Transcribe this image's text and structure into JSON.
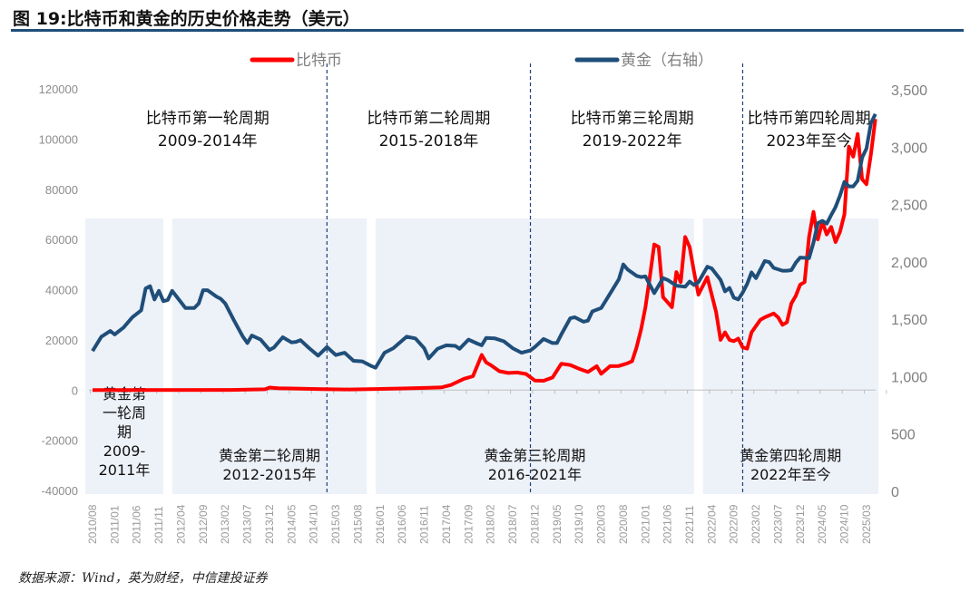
{
  "title": "图 19:比特币和黄金的历史价格走势（美元）",
  "source": "数据来源：Wind，英为财经，中信建投证券",
  "chart_data": {
    "type": "line",
    "title": "图 19:比特币和黄金的历史价格走势（美元）",
    "x_ticks": [
      "2010/08",
      "2011/01",
      "2011/06",
      "2011/11",
      "2012/04",
      "2012/09",
      "2013/02",
      "2013/07",
      "2013/12",
      "2014/05",
      "2014/10",
      "2015/03",
      "2015/08",
      "2016/01",
      "2016/06",
      "2016/11",
      "2017/04",
      "2017/09",
      "2018/02",
      "2018/07",
      "2018/12",
      "2019/05",
      "2019/10",
      "2020/03",
      "2020/08",
      "2021/01",
      "2021/06",
      "2021/11",
      "2022/04",
      "2022/09",
      "2023/02",
      "2023/07",
      "2023/12",
      "2024/05",
      "2024/10",
      "2025/03"
    ],
    "y_left": {
      "ticks": [
        "120000",
        "100000",
        "80000",
        "60000",
        "40000",
        "20000",
        "0",
        "-20000",
        "-40000"
      ],
      "range": [
        -40000,
        120000
      ]
    },
    "y_right": {
      "ticks": [
        "3,500",
        "3,000",
        "2,500",
        "2,000",
        "1,500",
        "1,000",
        "500",
        "0"
      ],
      "range": [
        0,
        3500
      ]
    },
    "grid": false,
    "legend_position": "top",
    "series": [
      {
        "name": "比特币",
        "axis": "left",
        "color": "#ff0000",
        "points": [
          [
            "2010/08",
            0
          ],
          [
            "2013/03",
            50
          ],
          [
            "2013/11",
            300
          ],
          [
            "2013/12",
            1000
          ],
          [
            "2014/02",
            700
          ],
          [
            "2014/06",
            600
          ],
          [
            "2014/12",
            330
          ],
          [
            "2015/06",
            240
          ],
          [
            "2015/12",
            420
          ],
          [
            "2016/06",
            650
          ],
          [
            "2016/12",
            900
          ],
          [
            "2017/03",
            1100
          ],
          [
            "2017/05",
            2000
          ],
          [
            "2017/08",
            4500
          ],
          [
            "2017/10",
            5500
          ],
          [
            "2017/12",
            14000
          ],
          [
            "2018/01",
            11000
          ],
          [
            "2018/02",
            10000
          ],
          [
            "2018/04",
            7500
          ],
          [
            "2018/06",
            6800
          ],
          [
            "2018/08",
            7000
          ],
          [
            "2018/10",
            6400
          ],
          [
            "2018/12",
            3800
          ],
          [
            "2019/02",
            3700
          ],
          [
            "2019/04",
            5000
          ],
          [
            "2019/06",
            10500
          ],
          [
            "2019/08",
            10000
          ],
          [
            "2019/10",
            8500
          ],
          [
            "2019/12",
            7200
          ],
          [
            "2020/02",
            9500
          ],
          [
            "2020/03",
            6500
          ],
          [
            "2020/05",
            9500
          ],
          [
            "2020/07",
            9600
          ],
          [
            "2020/09",
            10700
          ],
          [
            "2020/10",
            11500
          ],
          [
            "2020/11",
            17000
          ],
          [
            "2020/12",
            24000
          ],
          [
            "2021/01",
            33000
          ],
          [
            "2021/02",
            45000
          ],
          [
            "2021/03",
            58000
          ],
          [
            "2021/04",
            57000
          ],
          [
            "2021/05",
            37000
          ],
          [
            "2021/06",
            35000
          ],
          [
            "2021/07",
            33000
          ],
          [
            "2021/08",
            47000
          ],
          [
            "2021/09",
            43000
          ],
          [
            "2021/10",
            61000
          ],
          [
            "2021/11",
            57000
          ],
          [
            "2021/12",
            47000
          ],
          [
            "2022/01",
            38000
          ],
          [
            "2022/03",
            45000
          ],
          [
            "2022/05",
            31000
          ],
          [
            "2022/06",
            20000
          ],
          [
            "2022/07",
            23000
          ],
          [
            "2022/08",
            20000
          ],
          [
            "2022/09",
            19500
          ],
          [
            "2022/10",
            20500
          ],
          [
            "2022/11",
            17000
          ],
          [
            "2022/12",
            16500
          ],
          [
            "2023/01",
            23000
          ],
          [
            "2023/03",
            28000
          ],
          [
            "2023/04",
            29000
          ],
          [
            "2023/06",
            30500
          ],
          [
            "2023/07",
            29000
          ],
          [
            "2023/08",
            26000
          ],
          [
            "2023/09",
            27000
          ],
          [
            "2023/10",
            34500
          ],
          [
            "2023/11",
            37500
          ],
          [
            "2023/12",
            42000
          ],
          [
            "2024/01",
            43000
          ],
          [
            "2024/02",
            61000
          ],
          [
            "2024/03",
            71000
          ],
          [
            "2024/04",
            60000
          ],
          [
            "2024/05",
            67000
          ],
          [
            "2024/06",
            62000
          ],
          [
            "2024/07",
            65000
          ],
          [
            "2024/08",
            59000
          ],
          [
            "2024/09",
            63000
          ],
          [
            "2024/10",
            70000
          ],
          [
            "2024/11",
            97000
          ],
          [
            "2024/12",
            93000
          ],
          [
            "2025/01",
            102000
          ],
          [
            "2025/02",
            84000
          ],
          [
            "2025/03",
            82000
          ],
          [
            "2025/04",
            94000
          ],
          [
            "2025/05",
            108000
          ]
        ]
      },
      {
        "name": "黄金（右轴）",
        "axis": "right",
        "color": "#1f4e79",
        "points": [
          [
            "2010/08",
            1215
          ],
          [
            "2010/10",
            1340
          ],
          [
            "2010/12",
            1390
          ],
          [
            "2011/01",
            1360
          ],
          [
            "2011/03",
            1420
          ],
          [
            "2011/05",
            1510
          ],
          [
            "2011/07",
            1570
          ],
          [
            "2011/08",
            1760
          ],
          [
            "2011/09",
            1780
          ],
          [
            "2011/10",
            1665
          ],
          [
            "2011/11",
            1740
          ],
          [
            "2011/12",
            1650
          ],
          [
            "2012/01",
            1660
          ],
          [
            "2012/02",
            1740
          ],
          [
            "2012/03",
            1690
          ],
          [
            "2012/05",
            1590
          ],
          [
            "2012/07",
            1590
          ],
          [
            "2012/08",
            1630
          ],
          [
            "2012/09",
            1745
          ],
          [
            "2012/10",
            1745
          ],
          [
            "2012/12",
            1690
          ],
          [
            "2013/01",
            1670
          ],
          [
            "2013/02",
            1630
          ],
          [
            "2013/04",
            1480
          ],
          [
            "2013/06",
            1340
          ],
          [
            "2013/07",
            1285
          ],
          [
            "2013/08",
            1350
          ],
          [
            "2013/10",
            1315
          ],
          [
            "2013/12",
            1225
          ],
          [
            "2014/01",
            1245
          ],
          [
            "2014/03",
            1335
          ],
          [
            "2014/05",
            1290
          ],
          [
            "2014/06",
            1295
          ],
          [
            "2014/07",
            1310
          ],
          [
            "2014/09",
            1240
          ],
          [
            "2014/11",
            1175
          ],
          [
            "2015/01",
            1250
          ],
          [
            "2015/03",
            1180
          ],
          [
            "2015/05",
            1200
          ],
          [
            "2015/07",
            1130
          ],
          [
            "2015/09",
            1125
          ],
          [
            "2015/11",
            1085
          ],
          [
            "2015/12",
            1070
          ],
          [
            "2016/02",
            1200
          ],
          [
            "2016/04",
            1240
          ],
          [
            "2016/07",
            1340
          ],
          [
            "2016/09",
            1325
          ],
          [
            "2016/11",
            1240
          ],
          [
            "2016/12",
            1150
          ],
          [
            "2017/02",
            1235
          ],
          [
            "2017/04",
            1265
          ],
          [
            "2017/06",
            1260
          ],
          [
            "2017/07",
            1235
          ],
          [
            "2017/09",
            1315
          ],
          [
            "2017/11",
            1280
          ],
          [
            "2017/12",
            1265
          ],
          [
            "2018/01",
            1330
          ],
          [
            "2018/03",
            1325
          ],
          [
            "2018/05",
            1300
          ],
          [
            "2018/07",
            1240
          ],
          [
            "2018/09",
            1200
          ],
          [
            "2018/11",
            1220
          ],
          [
            "2018/12",
            1250
          ],
          [
            "2019/02",
            1320
          ],
          [
            "2019/04",
            1285
          ],
          [
            "2019/05",
            1285
          ],
          [
            "2019/06",
            1360
          ],
          [
            "2019/08",
            1500
          ],
          [
            "2019/09",
            1510
          ],
          [
            "2019/11",
            1470
          ],
          [
            "2019/12",
            1480
          ],
          [
            "2020/01",
            1560
          ],
          [
            "2020/03",
            1590
          ],
          [
            "2020/05",
            1715
          ],
          [
            "2020/07",
            1840
          ],
          [
            "2020/08",
            1970
          ],
          [
            "2020/09",
            1925
          ],
          [
            "2020/11",
            1870
          ],
          [
            "2020/12",
            1860
          ],
          [
            "2021/01",
            1865
          ],
          [
            "2021/03",
            1720
          ],
          [
            "2021/05",
            1850
          ],
          [
            "2021/06",
            1835
          ],
          [
            "2021/08",
            1785
          ],
          [
            "2021/10",
            1775
          ],
          [
            "2021/11",
            1820
          ],
          [
            "2021/12",
            1790
          ],
          [
            "2022/01",
            1815
          ],
          [
            "2022/03",
            1950
          ],
          [
            "2022/04",
            1935
          ],
          [
            "2022/06",
            1835
          ],
          [
            "2022/07",
            1735
          ],
          [
            "2022/08",
            1765
          ],
          [
            "2022/09",
            1680
          ],
          [
            "2022/10",
            1665
          ],
          [
            "2022/11",
            1725
          ],
          [
            "2022/12",
            1800
          ],
          [
            "2023/01",
            1900
          ],
          [
            "2023/02",
            1850
          ],
          [
            "2023/04",
            2000
          ],
          [
            "2023/05",
            1990
          ],
          [
            "2023/06",
            1940
          ],
          [
            "2023/08",
            1915
          ],
          [
            "2023/09",
            1915
          ],
          [
            "2023/10",
            1920
          ],
          [
            "2023/11",
            1985
          ],
          [
            "2023/12",
            2030
          ],
          [
            "2024/02",
            2025
          ],
          [
            "2024/03",
            2160
          ],
          [
            "2024/04",
            2330
          ],
          [
            "2024/05",
            2350
          ],
          [
            "2024/06",
            2325
          ],
          [
            "2024/07",
            2400
          ],
          [
            "2024/08",
            2470
          ],
          [
            "2024/09",
            2570
          ],
          [
            "2024/10",
            2690
          ],
          [
            "2024/11",
            2650
          ],
          [
            "2024/12",
            2650
          ],
          [
            "2025/01",
            2700
          ],
          [
            "2025/02",
            2900
          ],
          [
            "2025/03",
            2980
          ],
          [
            "2025/04",
            3200
          ],
          [
            "2025/05",
            3280
          ]
        ]
      }
    ],
    "gold_cycle_bands": [
      {
        "from": "2010/06",
        "to": "2011/12",
        "label": "黄金第一轮周期\n2009-2011年",
        "lines": [
          "黄金第",
          "一轮周",
          "期",
          "2009-",
          "2011年"
        ]
      },
      {
        "from": "2012/02",
        "to": "2015/10",
        "lines": [
          "黄金第二轮周期",
          "2012-2015年"
        ]
      },
      {
        "from": "2015/12",
        "to": "2021/12",
        "lines": [
          "黄金第三轮周期",
          "2016-2021年"
        ]
      },
      {
        "from": "2022/02",
        "to": "2025/06",
        "lines": [
          "黄金第四轮周期",
          "2022年至今"
        ]
      }
    ],
    "bitcoin_cycle_dividers": [
      "2015/01",
      "2018/11",
      "2022/11"
    ],
    "bitcoin_cycle_labels": [
      {
        "at": "2012/10",
        "lines": [
          "比特币第一轮周期",
          "2009-2014年"
        ]
      },
      {
        "at": "2016/12",
        "lines": [
          "比特币第二轮周期",
          "2015-2018年"
        ]
      },
      {
        "at": "2020/10",
        "lines": [
          "比特币第三轮周期",
          "2019-2022年"
        ]
      },
      {
        "at": "2024/02",
        "lines": [
          "比特币第四轮周期",
          "2023年至今"
        ]
      }
    ]
  }
}
